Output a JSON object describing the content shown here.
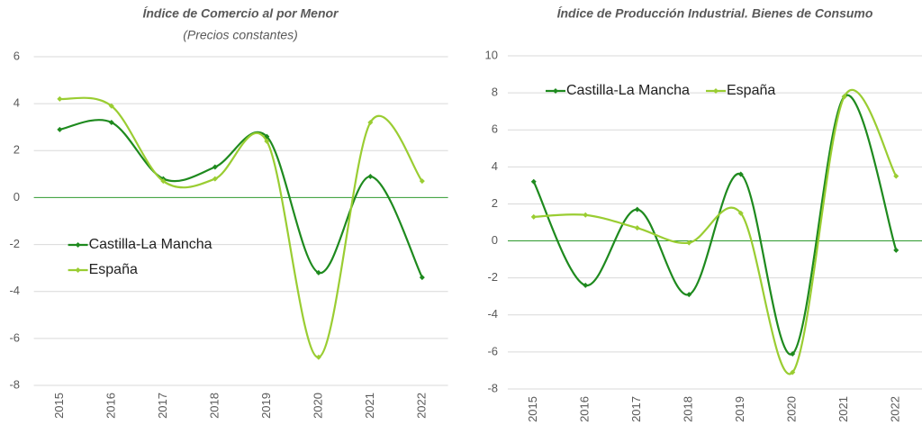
{
  "chart_data": [
    {
      "type": "line",
      "title": "Índice de Comercio al por Menor",
      "subtitle": "(Precios constantes)",
      "categories": [
        "2015",
        "2016",
        "2017",
        "2018",
        "2019",
        "2020",
        "2021",
        "2022"
      ],
      "series": [
        {
          "name": "Castilla-La Mancha",
          "color": "#1e8a1e",
          "values": [
            2.9,
            3.2,
            0.8,
            1.3,
            2.6,
            -3.2,
            0.9,
            -3.4
          ]
        },
        {
          "name": "España",
          "color": "#9acd32",
          "values": [
            4.2,
            3.9,
            0.7,
            0.8,
            2.4,
            -6.8,
            3.2,
            0.7
          ]
        }
      ],
      "ylim": [
        -8,
        6
      ],
      "yticks": [
        -8,
        -6,
        -4,
        -2,
        0,
        2,
        4,
        6
      ],
      "grid": true,
      "smooth": true,
      "legend": "center-left"
    },
    {
      "type": "line",
      "title": "Índice de Producción Industrial. Bienes de Consumo",
      "categories": [
        "2015",
        "2016",
        "2017",
        "2018",
        "2019",
        "2020",
        "2021",
        "2022"
      ],
      "series": [
        {
          "name": "Castilla-La Mancha",
          "color": "#1e8a1e",
          "values": [
            3.2,
            -2.4,
            1.7,
            -2.9,
            3.6,
            -6.1,
            7.8,
            -0.5
          ]
        },
        {
          "name": "España",
          "color": "#9acd32",
          "values": [
            1.3,
            1.4,
            0.7,
            -0.1,
            1.5,
            -7.1,
            7.8,
            3.5
          ]
        }
      ],
      "ylim": [
        -8,
        10
      ],
      "yticks": [
        -8,
        -6,
        -4,
        -2,
        0,
        2,
        4,
        6,
        8,
        10
      ],
      "grid": true,
      "smooth": true,
      "legend": "upper-left"
    }
  ]
}
